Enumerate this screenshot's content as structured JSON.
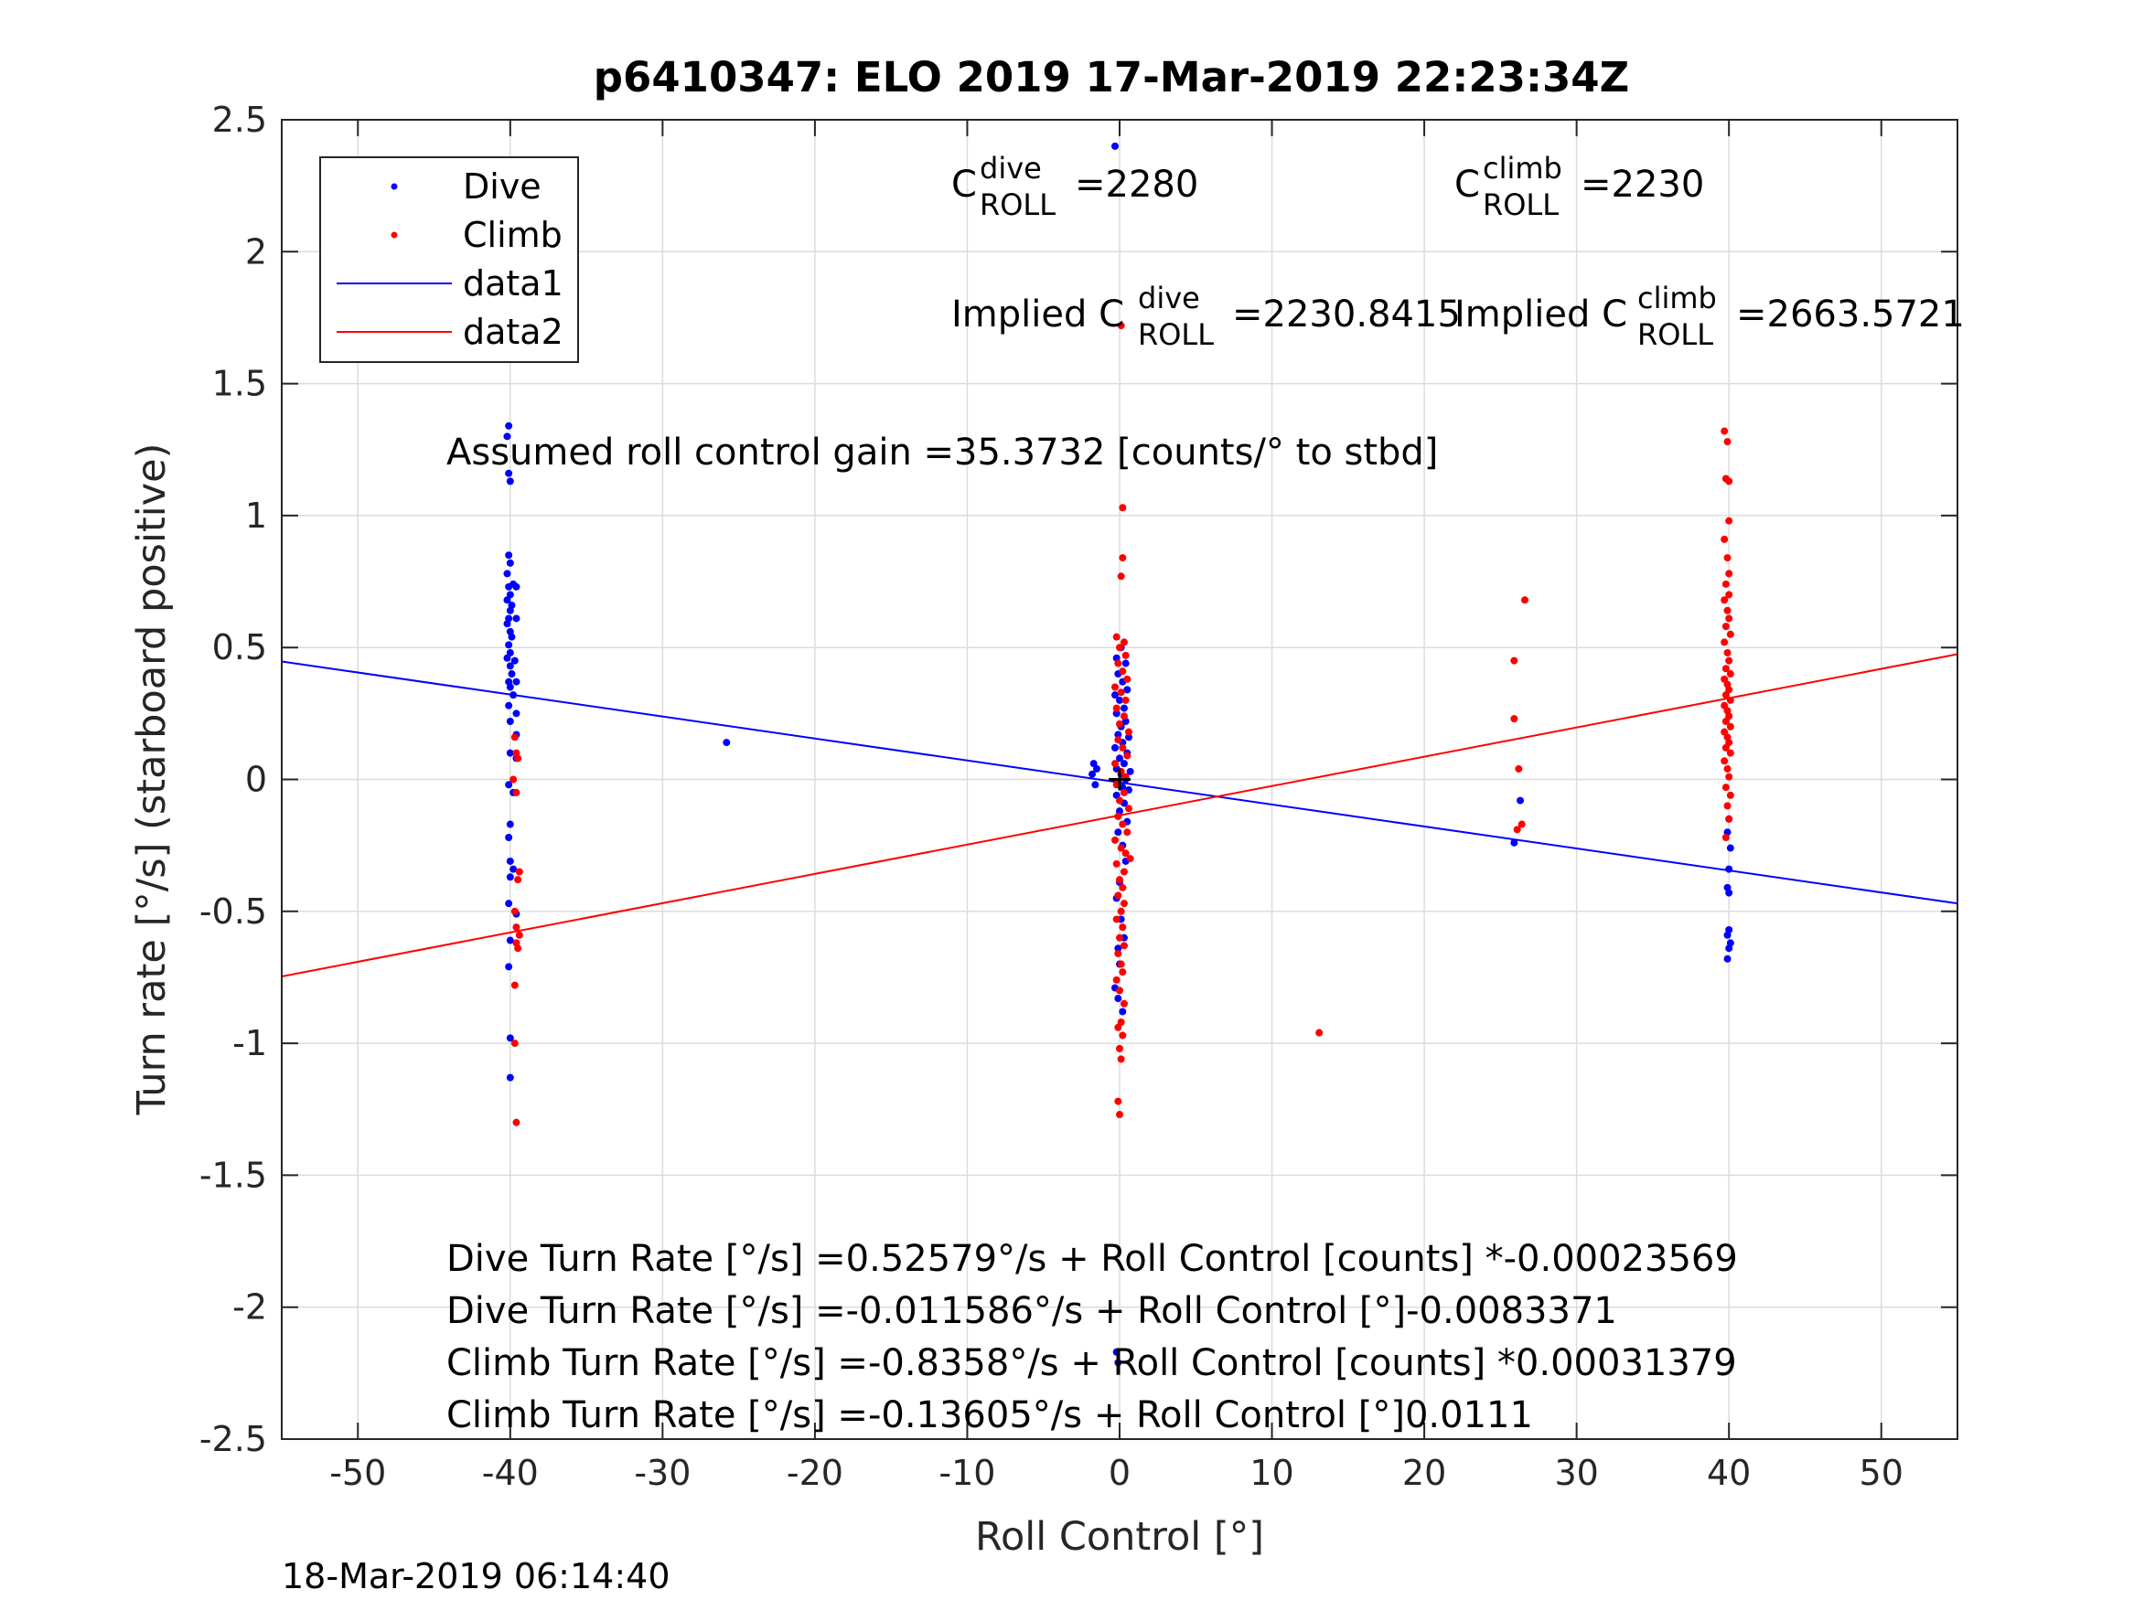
{
  "figure": {
    "title": "p6410347: ELO 2019 17-Mar-2019 22:23:34Z",
    "timestamp": "18-Mar-2019 06:14:40"
  },
  "chart_data": {
    "type": "scatter",
    "title": "p6410347: ELO 2019 17-Mar-2019 22:23:34Z",
    "xlabel": "Roll Control [°]",
    "ylabel": "Turn rate [°/s] (starboard positive)",
    "xlim": [
      -55,
      55
    ],
    "ylim": [
      -2.5,
      2.5
    ],
    "xticks": [
      -50,
      -40,
      -30,
      -20,
      -10,
      0,
      10,
      20,
      30,
      40,
      50
    ],
    "yticks": [
      -2.5,
      -2,
      -1.5,
      -1,
      -0.5,
      0,
      0.5,
      1,
      1.5,
      2,
      2.5
    ],
    "xtick_labels": [
      "-50",
      "-40",
      "-30",
      "-20",
      "-10",
      "0",
      "10",
      "20",
      "30",
      "40",
      "50"
    ],
    "ytick_labels": [
      "-2.5",
      "-2",
      "-1.5",
      "-1",
      "-0.5",
      "0",
      "0.5",
      "1",
      "1.5",
      "2",
      "2.5"
    ],
    "grid": true,
    "legend": {
      "placement": "top-left",
      "entries": [
        {
          "label": "Dive",
          "color": "#0000ff",
          "marker": "dot"
        },
        {
          "label": "Climb",
          "color": "#ff0000",
          "marker": "dot"
        },
        {
          "label": "data1",
          "color": "#0000ff",
          "marker": "line"
        },
        {
          "label": "data2",
          "color": "#ff0000",
          "marker": "line"
        }
      ]
    },
    "colors": {
      "dive": "#0000ff",
      "climb": "#ff0000",
      "zero_marker": "#000000"
    },
    "series": [
      {
        "name": "Dive",
        "kind": "points",
        "color": "#0000ff",
        "points": [
          [
            -40.1,
            1.34
          ],
          [
            -40.2,
            1.3
          ],
          [
            -40.1,
            1.16
          ],
          [
            -40.0,
            1.13
          ],
          [
            -40.1,
            0.85
          ],
          [
            -40.0,
            0.82
          ],
          [
            -40.2,
            0.78
          ],
          [
            -39.8,
            0.74
          ],
          [
            -40.1,
            0.73
          ],
          [
            -39.6,
            0.73
          ],
          [
            -40.0,
            0.7
          ],
          [
            -40.2,
            0.68
          ],
          [
            -39.9,
            0.66
          ],
          [
            -40.0,
            0.64
          ],
          [
            -40.1,
            0.61
          ],
          [
            -39.6,
            0.61
          ],
          [
            -40.2,
            0.59
          ],
          [
            -40.0,
            0.56
          ],
          [
            -39.9,
            0.54
          ],
          [
            -40.1,
            0.51
          ],
          [
            -40.0,
            0.48
          ],
          [
            -40.2,
            0.46
          ],
          [
            -39.7,
            0.45
          ],
          [
            -40.0,
            0.43
          ],
          [
            -39.9,
            0.4
          ],
          [
            -40.1,
            0.37
          ],
          [
            -39.6,
            0.37
          ],
          [
            -40.0,
            0.35
          ],
          [
            -39.8,
            0.32
          ],
          [
            -40.1,
            0.28
          ],
          [
            -39.6,
            0.25
          ],
          [
            -40.0,
            0.22
          ],
          [
            -39.6,
            0.17
          ],
          [
            -40.0,
            0.1
          ],
          [
            -39.6,
            0.08
          ],
          [
            -40.1,
            -0.02
          ],
          [
            -39.8,
            -0.05
          ],
          [
            -40.0,
            -0.17
          ],
          [
            -40.1,
            -0.22
          ],
          [
            -40.0,
            -0.31
          ],
          [
            -39.8,
            -0.34
          ],
          [
            -40.0,
            -0.37
          ],
          [
            -40.1,
            -0.47
          ],
          [
            -39.6,
            -0.51
          ],
          [
            -40.0,
            -0.61
          ],
          [
            -40.1,
            -0.71
          ],
          [
            -40.0,
            -0.98
          ],
          [
            -40.0,
            -1.13
          ],
          [
            -25.8,
            0.14
          ],
          [
            -1.7,
            0.06
          ],
          [
            -1.5,
            0.04
          ],
          [
            -1.8,
            0.02
          ],
          [
            -1.6,
            -0.02
          ],
          [
            -0.3,
            2.4
          ],
          [
            0.1,
            0.5
          ],
          [
            -0.2,
            0.46
          ],
          [
            0.4,
            0.44
          ],
          [
            -0.1,
            0.4
          ],
          [
            0.2,
            0.37
          ],
          [
            0.5,
            0.34
          ],
          [
            -0.3,
            0.32
          ],
          [
            0.0,
            0.3
          ],
          [
            0.3,
            0.27
          ],
          [
            -0.2,
            0.25
          ],
          [
            0.4,
            0.22
          ],
          [
            0.1,
            0.2
          ],
          [
            -0.1,
            0.17
          ],
          [
            0.6,
            0.16
          ],
          [
            0.2,
            0.14
          ],
          [
            -0.3,
            0.12
          ],
          [
            0.5,
            0.1
          ],
          [
            0.0,
            0.08
          ],
          [
            0.3,
            0.06
          ],
          [
            -0.2,
            0.04
          ],
          [
            0.7,
            0.03
          ],
          [
            0.1,
            0.02
          ],
          [
            0.4,
            0.0
          ],
          [
            -0.1,
            -0.01
          ],
          [
            0.2,
            -0.03
          ],
          [
            0.6,
            -0.04
          ],
          [
            -0.2,
            -0.06
          ],
          [
            0.3,
            -0.09
          ],
          [
            0.0,
            -0.12
          ],
          [
            0.5,
            -0.16
          ],
          [
            -0.1,
            -0.2
          ],
          [
            0.2,
            -0.25
          ],
          [
            0.4,
            -0.31
          ],
          [
            0.0,
            -0.39
          ],
          [
            -0.2,
            -0.45
          ],
          [
            0.1,
            -0.53
          ],
          [
            0.3,
            -0.6
          ],
          [
            -0.1,
            -0.64
          ],
          [
            0.0,
            -0.7
          ],
          [
            -0.3,
            -0.79
          ],
          [
            -0.1,
            -0.83
          ],
          [
            0.2,
            -0.88
          ],
          [
            -0.2,
            -2.17
          ],
          [
            -0.1,
            -2.21
          ],
          [
            25.9,
            -0.24
          ],
          [
            26.3,
            -0.08
          ],
          [
            40.0,
            -0.15
          ],
          [
            39.9,
            -0.2
          ],
          [
            40.1,
            -0.26
          ],
          [
            40.0,
            -0.34
          ],
          [
            39.9,
            -0.41
          ],
          [
            40.0,
            -0.43
          ],
          [
            40.0,
            -0.57
          ],
          [
            39.9,
            -0.59
          ],
          [
            40.1,
            -0.62
          ],
          [
            40.0,
            -0.64
          ],
          [
            39.9,
            -0.68
          ]
        ]
      },
      {
        "name": "Climb",
        "kind": "points",
        "color": "#ff0000",
        "points": [
          [
            -39.7,
            0.16
          ],
          [
            -39.6,
            0.1
          ],
          [
            -39.5,
            0.08
          ],
          [
            -39.8,
            0.0
          ],
          [
            -39.6,
            -0.05
          ],
          [
            -39.4,
            -0.35
          ],
          [
            -39.5,
            -0.38
          ],
          [
            -39.7,
            -0.5
          ],
          [
            -39.6,
            -0.56
          ],
          [
            -39.4,
            -0.59
          ],
          [
            -39.6,
            -0.62
          ],
          [
            -39.5,
            -0.64
          ],
          [
            -39.7,
            -0.78
          ],
          [
            -39.7,
            -1.0
          ],
          [
            -39.6,
            -1.3
          ],
          [
            0.2,
            1.03
          ],
          [
            0.2,
            0.84
          ],
          [
            0.1,
            0.77
          ],
          [
            -0.2,
            0.54
          ],
          [
            0.3,
            0.52
          ],
          [
            0.0,
            0.5
          ],
          [
            0.4,
            0.47
          ],
          [
            -0.1,
            0.44
          ],
          [
            0.2,
            0.41
          ],
          [
            0.5,
            0.38
          ],
          [
            -0.3,
            0.35
          ],
          [
            0.1,
            0.33
          ],
          [
            0.4,
            0.3
          ],
          [
            -0.2,
            0.27
          ],
          [
            0.3,
            0.24
          ],
          [
            0.0,
            0.21
          ],
          [
            0.6,
            0.18
          ],
          [
            -0.1,
            0.15
          ],
          [
            0.2,
            0.12
          ],
          [
            0.5,
            0.09
          ],
          [
            -0.3,
            0.06
          ],
          [
            0.1,
            0.03
          ],
          [
            0.4,
            0.01
          ],
          [
            -0.2,
            -0.02
          ],
          [
            0.3,
            -0.05
          ],
          [
            0.0,
            -0.08
          ],
          [
            0.6,
            -0.11
          ],
          [
            -0.1,
            -0.14
          ],
          [
            0.2,
            -0.17
          ],
          [
            0.5,
            -0.2
          ],
          [
            -0.3,
            -0.23
          ],
          [
            0.1,
            -0.26
          ],
          [
            0.4,
            -0.28
          ],
          [
            0.7,
            -0.3
          ],
          [
            -0.2,
            -0.32
          ],
          [
            0.3,
            -0.35
          ],
          [
            0.0,
            -0.38
          ],
          [
            0.2,
            -0.41
          ],
          [
            -0.1,
            -0.44
          ],
          [
            0.3,
            -0.47
          ],
          [
            0.1,
            -0.5
          ],
          [
            -0.2,
            -0.53
          ],
          [
            0.2,
            -0.56
          ],
          [
            0.0,
            -0.6
          ],
          [
            0.3,
            -0.63
          ],
          [
            -0.1,
            -0.66
          ],
          [
            0.1,
            -0.7
          ],
          [
            0.2,
            -0.73
          ],
          [
            -0.2,
            -0.76
          ],
          [
            0.0,
            -0.8
          ],
          [
            0.3,
            -0.85
          ],
          [
            0.1,
            -0.92
          ],
          [
            -0.1,
            -0.94
          ],
          [
            0.2,
            -0.97
          ],
          [
            0.0,
            -1.02
          ],
          [
            0.1,
            -1.06
          ],
          [
            -0.1,
            -1.22
          ],
          [
            0.0,
            -1.27
          ],
          [
            0.1,
            1.72
          ],
          [
            13.1,
            -0.96
          ],
          [
            26.6,
            0.68
          ],
          [
            25.9,
            0.45
          ],
          [
            25.9,
            0.23
          ],
          [
            26.2,
            0.04
          ],
          [
            26.4,
            -0.17
          ],
          [
            26.1,
            -0.19
          ],
          [
            39.7,
            1.32
          ],
          [
            39.9,
            1.28
          ],
          [
            39.8,
            1.14
          ],
          [
            40.0,
            1.13
          ],
          [
            40.0,
            0.98
          ],
          [
            39.7,
            0.91
          ],
          [
            39.9,
            0.84
          ],
          [
            40.0,
            0.78
          ],
          [
            39.8,
            0.74
          ],
          [
            40.0,
            0.7
          ],
          [
            39.7,
            0.68
          ],
          [
            39.9,
            0.64
          ],
          [
            40.0,
            0.61
          ],
          [
            39.8,
            0.58
          ],
          [
            40.1,
            0.55
          ],
          [
            39.7,
            0.52
          ],
          [
            39.9,
            0.48
          ],
          [
            40.0,
            0.45
          ],
          [
            39.8,
            0.42
          ],
          [
            40.1,
            0.4
          ],
          [
            39.7,
            0.38
          ],
          [
            39.9,
            0.36
          ],
          [
            40.0,
            0.34
          ],
          [
            39.8,
            0.32
          ],
          [
            40.1,
            0.3
          ],
          [
            39.7,
            0.28
          ],
          [
            39.9,
            0.26
          ],
          [
            40.0,
            0.24
          ],
          [
            39.8,
            0.22
          ],
          [
            40.1,
            0.2
          ],
          [
            39.7,
            0.18
          ],
          [
            39.9,
            0.16
          ],
          [
            40.0,
            0.14
          ],
          [
            39.8,
            0.12
          ],
          [
            40.1,
            0.1
          ],
          [
            39.7,
            0.07
          ],
          [
            39.9,
            0.04
          ],
          [
            40.0,
            0.01
          ],
          [
            39.8,
            -0.03
          ],
          [
            40.1,
            -0.06
          ],
          [
            39.9,
            -0.1
          ],
          [
            40.0,
            -0.15
          ],
          [
            39.8,
            -0.22
          ]
        ]
      },
      {
        "name": "data1",
        "kind": "line",
        "color": "#0000ff",
        "x": [
          -55,
          55
        ],
        "y": [
          0.4469,
          -0.4701
        ]
      },
      {
        "name": "data2",
        "kind": "line",
        "color": "#ff0000",
        "x": [
          -55,
          55
        ],
        "y": [
          -0.7466,
          0.4746
        ]
      }
    ],
    "zero_marker": {
      "x": 0,
      "y": 0,
      "label": "+"
    },
    "annotations": {
      "c_dive": {
        "base": "C",
        "sup": "dive",
        "sub": "ROLL",
        "value": "=2280"
      },
      "c_climb": {
        "base": "C",
        "sup": "climb",
        "sub": "ROLL",
        "value": "=2230"
      },
      "implied_dive": {
        "prefix": "Implied C",
        "sup": "dive",
        "sub": "ROLL",
        "value": "=2230.8415"
      },
      "implied_climb": {
        "prefix": "Implied C",
        "sup": "climb",
        "sub": "ROLL",
        "value": "=2663.5721"
      },
      "gain": "Assumed roll control gain =35.3732 [counts/° to stbd]",
      "fit_lines": [
        "Dive Turn Rate [°/s] =0.52579°/s + Roll Control [counts] *-0.00023569",
        "Dive Turn Rate [°/s] =-0.011586°/s + Roll Control [°]-0.0083371",
        "Climb Turn Rate [°/s] =-0.8358°/s + Roll Control [counts] *0.00031379",
        "Climb Turn Rate [°/s] =-0.13605°/s + Roll Control [°]0.0111"
      ]
    }
  }
}
